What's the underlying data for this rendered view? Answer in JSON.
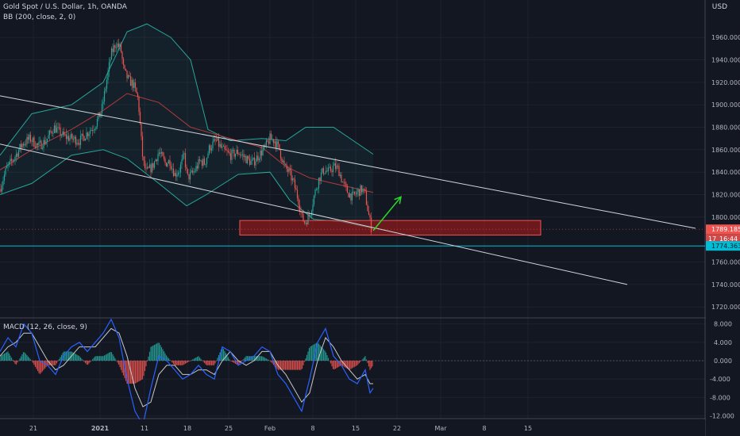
{
  "header": {
    "title": "Gold Spot / U.S. Dollar, 1h, OANDA",
    "indicator": "BB (200, close, 2, 0)",
    "currency": "USD"
  },
  "macd_header": "MACD (12, 26, close, 9)",
  "colors": {
    "background": "#131722",
    "grid": "#1e222d",
    "candle_up": "#26a69a",
    "candle_down": "#ef5350",
    "bb_band": "#26a69a",
    "bb_basis": "#b2383c",
    "channel": "#d1d4dc",
    "support_line": "#00bcd4",
    "zone": "#b71c1c",
    "arrow": "#2bd92b",
    "macd_line": "#2962ff",
    "signal_line": "#c8c8c8"
  },
  "chart_data": [
    {
      "type": "candlestick",
      "name": "price",
      "ylim": [
        1710,
        1985
      ],
      "y_ticks": [
        "1720.000",
        "1740.000",
        "1760.000",
        "1800.000",
        "1820.000",
        "1840.000",
        "1860.000",
        "1880.000",
        "1900.000",
        "1920.000",
        "1940.000",
        "1960.000"
      ],
      "x_ticks": [
        "21",
        "2021",
        "11",
        "18",
        "25",
        "Feb",
        "8",
        "15",
        "22",
        "Mar",
        "8",
        "15"
      ],
      "price_labels": {
        "last": "1789.185",
        "timer": "16:44",
        "timer_prefix": "17",
        "support": "1774.363"
      },
      "close_series": [
        [
          0,
          1825
        ],
        [
          8,
          1843
        ],
        [
          18,
          1853
        ],
        [
          28,
          1865
        ],
        [
          38,
          1870
        ],
        [
          48,
          1863
        ],
        [
          58,
          1868
        ],
        [
          68,
          1880
        ],
        [
          80,
          1872
        ],
        [
          90,
          1870
        ],
        [
          100,
          1868
        ],
        [
          110,
          1875
        ],
        [
          120,
          1882
        ],
        [
          128,
          1895
        ],
        [
          134,
          1920
        ],
        [
          140,
          1945
        ],
        [
          146,
          1955
        ],
        [
          152,
          1950
        ],
        [
          156,
          1930
        ],
        [
          162,
          1922
        ],
        [
          168,
          1918
        ],
        [
          174,
          1905
        ],
        [
          180,
          1850
        ],
        [
          184,
          1840
        ],
        [
          192,
          1845
        ],
        [
          200,
          1858
        ],
        [
          208,
          1848
        ],
        [
          214,
          1850
        ],
        [
          220,
          1838
        ],
        [
          226,
          1842
        ],
        [
          232,
          1855
        ],
        [
          236,
          1835
        ],
        [
          244,
          1840
        ],
        [
          252,
          1850
        ],
        [
          258,
          1848
        ],
        [
          264,
          1862
        ],
        [
          272,
          1868
        ],
        [
          280,
          1860
        ],
        [
          290,
          1855
        ],
        [
          300,
          1858
        ],
        [
          310,
          1852
        ],
        [
          318,
          1848
        ],
        [
          326,
          1855
        ],
        [
          334,
          1862
        ],
        [
          340,
          1870
        ],
        [
          346,
          1868
        ],
        [
          352,
          1860
        ],
        [
          358,
          1845
        ],
        [
          364,
          1840
        ],
        [
          370,
          1830
        ],
        [
          376,
          1815
        ],
        [
          380,
          1800
        ],
        [
          384,
          1795
        ],
        [
          390,
          1802
        ],
        [
          396,
          1820
        ],
        [
          402,
          1835
        ],
        [
          408,
          1842
        ],
        [
          414,
          1840
        ],
        [
          420,
          1845
        ],
        [
          426,
          1843
        ],
        [
          432,
          1830
        ],
        [
          438,
          1822
        ],
        [
          444,
          1818
        ],
        [
          450,
          1822
        ],
        [
          456,
          1825
        ],
        [
          460,
          1820
        ],
        [
          464,
          1803
        ],
        [
          468,
          1789
        ]
      ],
      "bb_upper": [
        [
          0,
          1855
        ],
        [
          40,
          1892
        ],
        [
          90,
          1900
        ],
        [
          130,
          1920
        ],
        [
          160,
          1965
        ],
        [
          185,
          1972
        ],
        [
          215,
          1960
        ],
        [
          240,
          1940
        ],
        [
          262,
          1878
        ],
        [
          290,
          1868
        ],
        [
          330,
          1870
        ],
        [
          360,
          1868
        ],
        [
          385,
          1880
        ],
        [
          420,
          1880
        ],
        [
          470,
          1856
        ]
      ],
      "bb_basis": [
        [
          0,
          1842
        ],
        [
          40,
          1860
        ],
        [
          90,
          1878
        ],
        [
          130,
          1895
        ],
        [
          160,
          1910
        ],
        [
          200,
          1902
        ],
        [
          240,
          1880
        ],
        [
          290,
          1870
        ],
        [
          330,
          1862
        ],
        [
          360,
          1845
        ],
        [
          390,
          1835
        ],
        [
          420,
          1830
        ],
        [
          470,
          1822
        ]
      ],
      "bb_lower": [
        [
          0,
          1820
        ],
        [
          40,
          1830
        ],
        [
          90,
          1855
        ],
        [
          130,
          1860
        ],
        [
          160,
          1852
        ],
        [
          200,
          1830
        ],
        [
          235,
          1810
        ],
        [
          260,
          1820
        ],
        [
          300,
          1838
        ],
        [
          340,
          1840
        ],
        [
          365,
          1815
        ],
        [
          395,
          1798
        ],
        [
          430,
          1796
        ],
        [
          470,
          1790
        ]
      ],
      "channel_upper": [
        [
          0,
          1908
        ],
        [
          876,
          1790
        ]
      ],
      "channel_lower": [
        [
          0,
          1865
        ],
        [
          790,
          1740
        ]
      ],
      "support_price": 1774.363,
      "zone": {
        "x_start": 302,
        "x_end": 681,
        "y_low": 1784,
        "y_high": 1797
      },
      "arrow": {
        "from": [
          470,
          1788
        ],
        "to": [
          505,
          1818
        ]
      }
    },
    {
      "type": "macd",
      "name": "MACD",
      "ylim": [
        -13.5,
        9.5
      ],
      "y_ticks": [
        "8.000",
        "4.000",
        "0.000",
        "-4.000",
        "-8.000",
        "-12.000"
      ],
      "macd": [
        [
          0,
          2
        ],
        [
          10,
          5
        ],
        [
          20,
          3
        ],
        [
          30,
          8
        ],
        [
          40,
          6
        ],
        [
          50,
          0
        ],
        [
          60,
          -1
        ],
        [
          70,
          -3
        ],
        [
          80,
          1
        ],
        [
          90,
          3
        ],
        [
          100,
          4
        ],
        [
          110,
          2
        ],
        [
          120,
          4
        ],
        [
          130,
          6
        ],
        [
          140,
          9
        ],
        [
          150,
          5
        ],
        [
          160,
          -4
        ],
        [
          170,
          -11
        ],
        [
          180,
          -14
        ],
        [
          190,
          -6
        ],
        [
          200,
          1
        ],
        [
          210,
          0
        ],
        [
          220,
          -2
        ],
        [
          230,
          -4
        ],
        [
          240,
          -3
        ],
        [
          250,
          -1
        ],
        [
          260,
          -3
        ],
        [
          270,
          -4
        ],
        [
          280,
          3
        ],
        [
          290,
          2
        ],
        [
          300,
          -1
        ],
        [
          310,
          0
        ],
        [
          320,
          1
        ],
        [
          330,
          3
        ],
        [
          340,
          2
        ],
        [
          350,
          -3
        ],
        [
          360,
          -5
        ],
        [
          370,
          -8
        ],
        [
          380,
          -11
        ],
        [
          390,
          -4
        ],
        [
          400,
          4
        ],
        [
          410,
          7
        ],
        [
          420,
          1
        ],
        [
          430,
          -1
        ],
        [
          440,
          -4
        ],
        [
          450,
          -5
        ],
        [
          460,
          -2
        ],
        [
          466,
          -7
        ],
        [
          470,
          -6
        ]
      ],
      "signal": [
        [
          0,
          1
        ],
        [
          10,
          3
        ],
        [
          20,
          4
        ],
        [
          30,
          6
        ],
        [
          40,
          6
        ],
        [
          50,
          3
        ],
        [
          60,
          0
        ],
        [
          70,
          -2
        ],
        [
          80,
          -1
        ],
        [
          90,
          1
        ],
        [
          100,
          3
        ],
        [
          110,
          3
        ],
        [
          120,
          3
        ],
        [
          130,
          5
        ],
        [
          140,
          7
        ],
        [
          150,
          6
        ],
        [
          160,
          1
        ],
        [
          170,
          -6
        ],
        [
          180,
          -10
        ],
        [
          190,
          -9
        ],
        [
          200,
          -3
        ],
        [
          210,
          -1
        ],
        [
          220,
          -1
        ],
        [
          230,
          -3
        ],
        [
          240,
          -3
        ],
        [
          250,
          -2
        ],
        [
          260,
          -2
        ],
        [
          270,
          -3
        ],
        [
          280,
          0
        ],
        [
          290,
          2
        ],
        [
          300,
          0
        ],
        [
          310,
          -1
        ],
        [
          320,
          0
        ],
        [
          330,
          2
        ],
        [
          340,
          2
        ],
        [
          350,
          -1
        ],
        [
          360,
          -3
        ],
        [
          370,
          -6
        ],
        [
          380,
          -9
        ],
        [
          390,
          -7
        ],
        [
          400,
          0
        ],
        [
          410,
          5
        ],
        [
          420,
          3
        ],
        [
          430,
          0
        ],
        [
          440,
          -2
        ],
        [
          450,
          -4
        ],
        [
          460,
          -3
        ],
        [
          466,
          -5
        ],
        [
          470,
          -5
        ]
      ]
    }
  ]
}
